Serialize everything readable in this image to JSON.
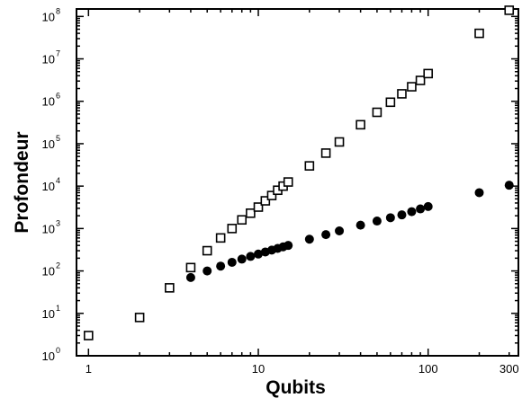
{
  "chart_data": {
    "type": "scatter",
    "xlabel": "Qubits",
    "ylabel": "Profondeur",
    "x_scale": "log",
    "y_scale": "log",
    "xlim": [
      0.85,
      340
    ],
    "ylim": [
      1,
      150000000.0
    ],
    "x_ticks": [
      {
        "value": 1,
        "label": "1"
      },
      {
        "value": 10,
        "label": "10"
      },
      {
        "value": 100,
        "label": "100"
      },
      {
        "value": 300,
        "label": "300"
      }
    ],
    "y_ticks": [
      {
        "value": 1,
        "base": "10",
        "exp": "0"
      },
      {
        "value": 10,
        "base": "10",
        "exp": "1"
      },
      {
        "value": 100,
        "base": "10",
        "exp": "2"
      },
      {
        "value": 1000,
        "base": "10",
        "exp": "3"
      },
      {
        "value": 10000,
        "base": "10",
        "exp": "4"
      },
      {
        "value": 100000,
        "base": "10",
        "exp": "5"
      },
      {
        "value": 1000000,
        "base": "10",
        "exp": "6"
      },
      {
        "value": 10000000,
        "base": "10",
        "exp": "7"
      },
      {
        "value": 100000000,
        "base": "10",
        "exp": "8"
      }
    ],
    "grid": false,
    "series": [
      {
        "marker": "open-square",
        "points": [
          [
            1,
            3
          ],
          [
            2,
            8
          ],
          [
            3,
            40
          ],
          [
            4,
            120
          ],
          [
            5,
            300
          ],
          [
            6,
            600
          ],
          [
            7,
            1000
          ],
          [
            8,
            1600
          ],
          [
            9,
            2300
          ],
          [
            10,
            3200
          ],
          [
            11,
            4500
          ],
          [
            12,
            6000
          ],
          [
            13,
            8000
          ],
          [
            14,
            10000
          ],
          [
            15,
            12500
          ],
          [
            20,
            30000
          ],
          [
            25,
            60000
          ],
          [
            30,
            110000
          ],
          [
            40,
            280000
          ],
          [
            50,
            550000
          ],
          [
            60,
            950000
          ],
          [
            70,
            1500000
          ],
          [
            80,
            2200000
          ],
          [
            90,
            3100000
          ],
          [
            100,
            4500000
          ],
          [
            200,
            40000000
          ],
          [
            300,
            140000000
          ]
        ]
      },
      {
        "marker": "filled-circle",
        "points": [
          [
            4,
            70
          ],
          [
            5,
            100
          ],
          [
            6,
            130
          ],
          [
            7,
            160
          ],
          [
            8,
            190
          ],
          [
            9,
            220
          ],
          [
            10,
            250
          ],
          [
            11,
            280
          ],
          [
            12,
            310
          ],
          [
            13,
            340
          ],
          [
            14,
            370
          ],
          [
            15,
            400
          ],
          [
            20,
            560
          ],
          [
            25,
            720
          ],
          [
            30,
            880
          ],
          [
            40,
            1200
          ],
          [
            50,
            1500
          ],
          [
            60,
            1800
          ],
          [
            70,
            2100
          ],
          [
            80,
            2500
          ],
          [
            90,
            2900
          ],
          [
            100,
            3300
          ],
          [
            200,
            7000
          ],
          [
            300,
            10500
          ]
        ]
      }
    ]
  }
}
